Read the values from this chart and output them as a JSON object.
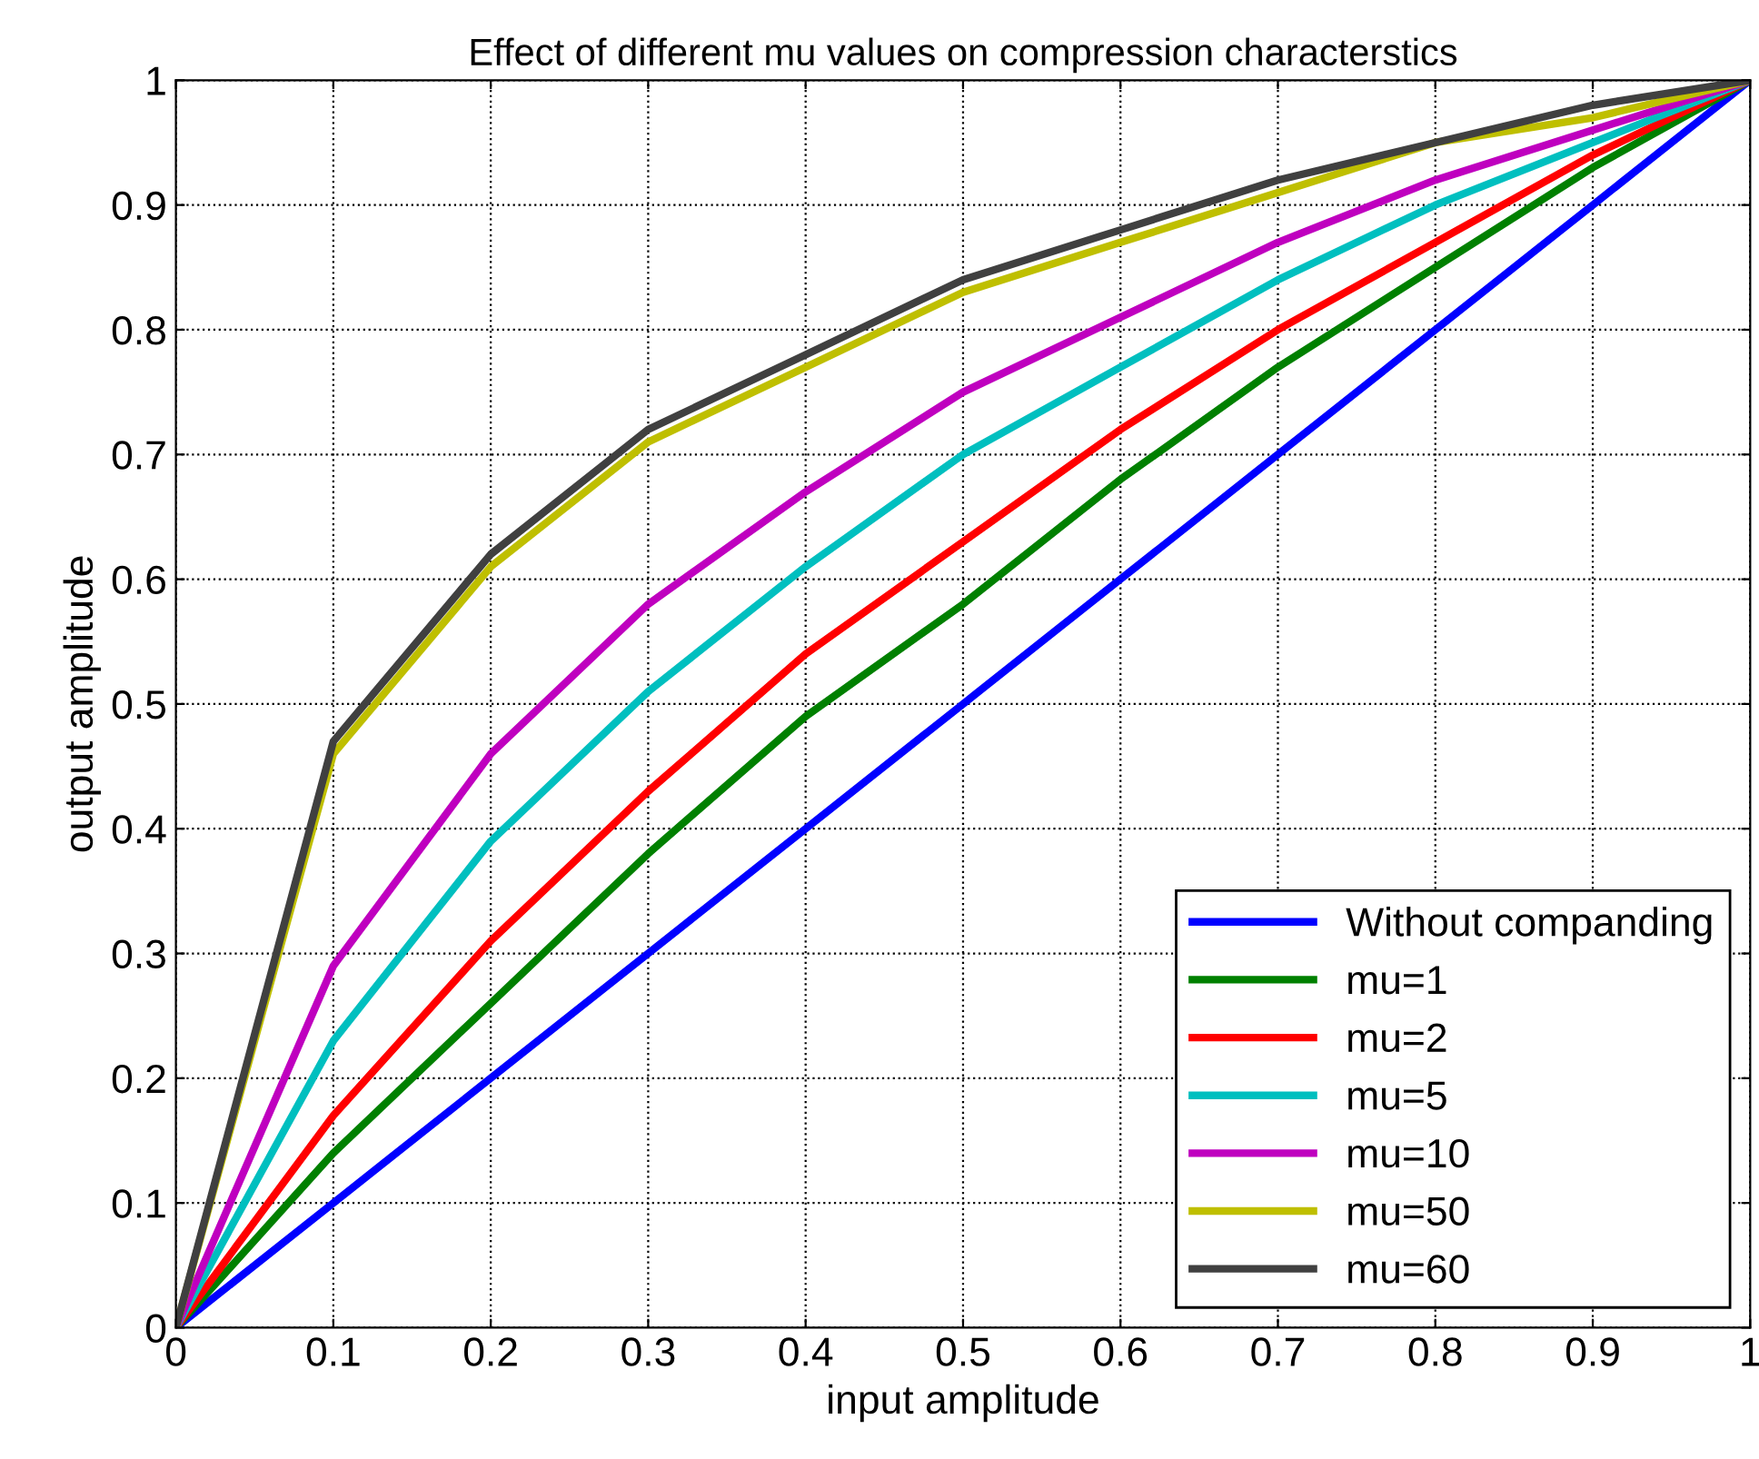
{
  "chart_data": {
    "type": "line",
    "title": "Effect of different mu values on compression characterstics",
    "xlabel": "input amplitude",
    "ylabel": "output amplitude",
    "x": [
      0,
      0.1,
      0.2,
      0.3,
      0.4,
      0.5,
      0.6,
      0.7,
      0.8,
      0.9,
      1
    ],
    "series": [
      {
        "name": "Without companding",
        "color": "#0000ff",
        "values": [
          0,
          0.1,
          0.2,
          0.3,
          0.4,
          0.5,
          0.6,
          0.7,
          0.8,
          0.9,
          1
        ]
      },
      {
        "name": "mu=1",
        "color": "#008000",
        "values": [
          0,
          0.14,
          0.26,
          0.38,
          0.49,
          0.58,
          0.68,
          0.77,
          0.85,
          0.93,
          1
        ]
      },
      {
        "name": "mu=2",
        "color": "#ff0000",
        "values": [
          0,
          0.17,
          0.31,
          0.43,
          0.54,
          0.63,
          0.72,
          0.8,
          0.87,
          0.94,
          1
        ]
      },
      {
        "name": "mu=5",
        "color": "#00bfbf",
        "values": [
          0,
          0.23,
          0.39,
          0.51,
          0.61,
          0.7,
          0.77,
          0.84,
          0.9,
          0.95,
          1
        ]
      },
      {
        "name": "mu=10",
        "color": "#bf00bf",
        "values": [
          0,
          0.29,
          0.46,
          0.58,
          0.67,
          0.75,
          0.81,
          0.87,
          0.92,
          0.96,
          1
        ]
      },
      {
        "name": "mu=50",
        "color": "#bfbf00",
        "values": [
          0,
          0.46,
          0.61,
          0.71,
          0.77,
          0.83,
          0.87,
          0.91,
          0.95,
          0.97,
          1
        ]
      },
      {
        "name": "mu=60",
        "color": "#404040",
        "values": [
          0,
          0.47,
          0.62,
          0.72,
          0.78,
          0.84,
          0.88,
          0.92,
          0.95,
          0.98,
          1
        ]
      }
    ],
    "xlim": [
      0,
      1
    ],
    "ylim": [
      0,
      1
    ],
    "xticks": [
      0,
      0.1,
      0.2,
      0.3,
      0.4,
      0.5,
      0.6,
      0.7,
      0.8,
      0.9,
      1
    ],
    "yticks": [
      0,
      0.1,
      0.2,
      0.3,
      0.4,
      0.5,
      0.6,
      0.7,
      0.8,
      0.9,
      1
    ],
    "grid": true,
    "legend": "bottom right",
    "marker": "none",
    "line_style": "solid"
  }
}
